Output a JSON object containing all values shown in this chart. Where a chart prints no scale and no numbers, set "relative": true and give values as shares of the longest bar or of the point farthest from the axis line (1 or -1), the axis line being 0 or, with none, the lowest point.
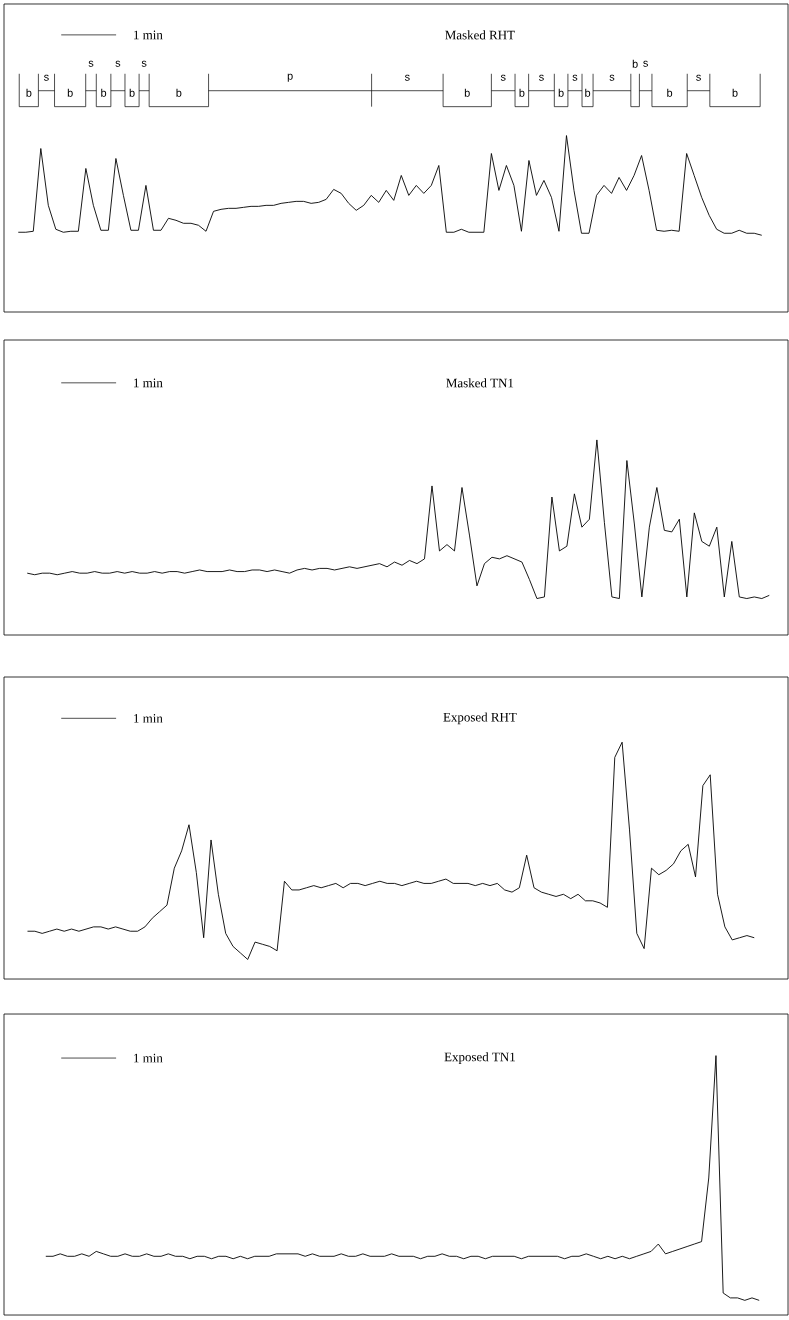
{
  "chart_data": [
    {
      "type": "line",
      "title": "Masked RHT",
      "relative": true,
      "color": "#000000",
      "annotations": [
        "1 min",
        "b",
        "s",
        "b",
        "s",
        "b",
        "s",
        "b",
        "s",
        "b",
        "p",
        "s",
        "b",
        "s",
        "b",
        "s",
        "b",
        "s",
        "b",
        "s",
        "b",
        "s",
        "b",
        "s",
        "b"
      ],
      "categories": [
        null,
        null,
        null,
        null,
        null,
        null,
        null,
        null,
        null,
        null,
        null,
        null,
        null,
        null,
        null,
        null,
        null,
        null,
        null,
        null,
        null,
        null,
        null,
        null,
        null,
        null,
        null,
        null,
        null,
        null,
        null,
        null,
        null,
        null,
        null,
        null,
        null,
        null,
        null,
        null,
        null,
        null,
        null,
        null,
        null,
        null,
        null,
        null,
        null,
        null,
        null,
        null,
        null,
        null,
        null,
        null,
        null,
        null,
        null,
        null,
        null,
        null,
        null,
        null,
        null,
        null,
        null,
        null,
        null,
        null,
        null,
        null,
        null,
        null,
        null,
        null,
        null,
        null,
        null,
        null,
        null,
        null,
        null,
        null,
        null,
        null,
        null,
        null,
        null,
        null,
        null,
        null,
        null,
        null,
        null,
        null,
        null,
        null,
        null,
        null
      ],
      "values": [
        0.03,
        0.03,
        0.04,
        0.87,
        0.3,
        0.06,
        0.03,
        0.04,
        0.04,
        0.67,
        0.3,
        0.05,
        0.05,
        0.77,
        0.4,
        0.05,
        0.05,
        0.5,
        0.05,
        0.05,
        0.17,
        0.15,
        0.12,
        0.12,
        0.1,
        0.04,
        0.24,
        0.26,
        0.27,
        0.27,
        0.28,
        0.29,
        0.29,
        0.3,
        0.3,
        0.32,
        0.33,
        0.34,
        0.34,
        0.32,
        0.33,
        0.36,
        0.46,
        0.42,
        0.32,
        0.25,
        0.3,
        0.4,
        0.33,
        0.45,
        0.35,
        0.6,
        0.4,
        0.5,
        0.42,
        0.5,
        0.7,
        0.03,
        0.03,
        0.06,
        0.03,
        0.03,
        0.03,
        0.82,
        0.45,
        0.7,
        0.5,
        0.04,
        0.75,
        0.4,
        0.55,
        0.38,
        0.04,
        1.0,
        0.45,
        0.02,
        0.02,
        0.4,
        0.5,
        0.42,
        0.58,
        0.45,
        0.6,
        0.8,
        0.45,
        0.05,
        0.04,
        0.05,
        0.04,
        0.82,
        0.6,
        0.38,
        0.2,
        0.06,
        0.02,
        0.02,
        0.05,
        0.02,
        0.02,
        0
      ]
    },
    {
      "type": "line",
      "title": "Masked TN1",
      "relative": true,
      "color": "#000000",
      "annotations": [
        "1 min"
      ],
      "categories": [
        null,
        null,
        null,
        null,
        null,
        null,
        null,
        null,
        null,
        null,
        null,
        null,
        null,
        null,
        null,
        null,
        null,
        null,
        null,
        null,
        null,
        null,
        null,
        null,
        null,
        null,
        null,
        null,
        null,
        null,
        null,
        null,
        null,
        null,
        null,
        null,
        null,
        null,
        null,
        null,
        null,
        null,
        null,
        null,
        null,
        null,
        null,
        null,
        null,
        null,
        null,
        null,
        null,
        null,
        null,
        null,
        null,
        null,
        null,
        null,
        null,
        null,
        null,
        null,
        null,
        null,
        null,
        null,
        null,
        null,
        null,
        null,
        null,
        null,
        null,
        null,
        null,
        null,
        null,
        null,
        null,
        null,
        null,
        null,
        null,
        null,
        null,
        null,
        null,
        null,
        null,
        null,
        null,
        null,
        null,
        null,
        null,
        null,
        null,
        null
      ],
      "values": [
        0.16,
        0.15,
        0.16,
        0.16,
        0.15,
        0.16,
        0.17,
        0.16,
        0.16,
        0.17,
        0.16,
        0.16,
        0.17,
        0.16,
        0.17,
        0.16,
        0.16,
        0.17,
        0.16,
        0.17,
        0.17,
        0.16,
        0.17,
        0.18,
        0.17,
        0.17,
        0.17,
        0.18,
        0.17,
        0.17,
        0.18,
        0.18,
        0.17,
        0.18,
        0.17,
        0.16,
        0.18,
        0.19,
        0.18,
        0.19,
        0.19,
        0.18,
        0.19,
        0.2,
        0.19,
        0.2,
        0.21,
        0.22,
        0.2,
        0.23,
        0.21,
        0.24,
        0.22,
        0.25,
        0.71,
        0.3,
        0.34,
        0.3,
        0.7,
        0.4,
        0.08,
        0.22,
        0.26,
        0.25,
        0.27,
        0.25,
        0.23,
        0.12,
        0,
        0.01,
        0.64,
        0.3,
        0.33,
        0.66,
        0.45,
        0.5,
        1.0,
        0.48,
        0.01,
        0,
        0.87,
        0.47,
        0.01,
        0.45,
        0.7,
        0.43,
        0.42,
        0.5,
        0.01,
        0.54,
        0.36,
        0.33,
        0.45,
        0.01,
        0.36,
        0.01,
        0,
        0.01,
        0,
        0.02
      ]
    },
    {
      "type": "line",
      "title": "Exposed RHT",
      "relative": true,
      "color": "#000000",
      "annotations": [
        "1 min"
      ],
      "categories": [
        null,
        null,
        null,
        null,
        null,
        null,
        null,
        null,
        null,
        null,
        null,
        null,
        null,
        null,
        null,
        null,
        null,
        null,
        null,
        null,
        null,
        null,
        null,
        null,
        null,
        null,
        null,
        null,
        null,
        null,
        null,
        null,
        null,
        null,
        null,
        null,
        null,
        null,
        null,
        null,
        null,
        null,
        null,
        null,
        null,
        null,
        null,
        null,
        null,
        null,
        null,
        null,
        null,
        null,
        null,
        null,
        null,
        null,
        null,
        null,
        null,
        null,
        null,
        null,
        null,
        null,
        null,
        null,
        null,
        null,
        null,
        null,
        null,
        null,
        null,
        null,
        null,
        null,
        null,
        null,
        null,
        null,
        null,
        null,
        null,
        null,
        null,
        null,
        null,
        null,
        null,
        null,
        null,
        null,
        null,
        null,
        null,
        null,
        null,
        null
      ],
      "values": [
        0.13,
        0.13,
        0.12,
        0.13,
        0.14,
        0.13,
        0.14,
        0.13,
        0.14,
        0.15,
        0.15,
        0.14,
        0.15,
        0.14,
        0.13,
        0.13,
        0.15,
        0.19,
        0.22,
        0.25,
        0.42,
        0.5,
        0.62,
        0.4,
        0.1,
        0.55,
        0.3,
        0.12,
        0.06,
        0.03,
        0,
        0.08,
        0.07,
        0.06,
        0.04,
        0.36,
        0.32,
        0.32,
        0.33,
        0.34,
        0.33,
        0.34,
        0.35,
        0.33,
        0.35,
        0.35,
        0.34,
        0.35,
        0.36,
        0.35,
        0.35,
        0.34,
        0.35,
        0.36,
        0.35,
        0.35,
        0.36,
        0.37,
        0.35,
        0.35,
        0.35,
        0.34,
        0.35,
        0.34,
        0.35,
        0.32,
        0.31,
        0.33,
        0.48,
        0.33,
        0.31,
        0.3,
        0.29,
        0.3,
        0.28,
        0.3,
        0.27,
        0.27,
        0.26,
        0.24,
        0.93,
        1.0,
        0.6,
        0.12,
        0.05,
        0.42,
        0.39,
        0.41,
        0.44,
        0.5,
        0.53,
        0.38,
        0.8,
        0.85,
        0.3,
        0.15,
        0.09,
        0.1,
        0.11,
        0.1
      ]
    },
    {
      "type": "line",
      "title": "Exposed TN1",
      "relative": true,
      "color": "#000000",
      "annotations": [
        "1 min"
      ],
      "categories": [
        null,
        null,
        null,
        null,
        null,
        null,
        null,
        null,
        null,
        null,
        null,
        null,
        null,
        null,
        null,
        null,
        null,
        null,
        null,
        null,
        null,
        null,
        null,
        null,
        null,
        null,
        null,
        null,
        null,
        null,
        null,
        null,
        null,
        null,
        null,
        null,
        null,
        null,
        null,
        null,
        null,
        null,
        null,
        null,
        null,
        null,
        null,
        null,
        null,
        null,
        null,
        null,
        null,
        null,
        null,
        null,
        null,
        null,
        null,
        null,
        null,
        null,
        null,
        null,
        null,
        null,
        null,
        null,
        null,
        null,
        null,
        null,
        null,
        null,
        null,
        null,
        null,
        null,
        null,
        null,
        null,
        null,
        null,
        null,
        null,
        null,
        null,
        null,
        null,
        null,
        null,
        null,
        null,
        null,
        null,
        null,
        null,
        null,
        null,
        null
      ],
      "values": [
        0.18,
        0.18,
        0.19,
        0.18,
        0.18,
        0.19,
        0.18,
        0.2,
        0.19,
        0.18,
        0.18,
        0.19,
        0.18,
        0.18,
        0.19,
        0.18,
        0.18,
        0.19,
        0.18,
        0.18,
        0.17,
        0.18,
        0.18,
        0.17,
        0.18,
        0.18,
        0.17,
        0.18,
        0.17,
        0.18,
        0.18,
        0.18,
        0.19,
        0.19,
        0.19,
        0.19,
        0.18,
        0.19,
        0.18,
        0.18,
        0.18,
        0.19,
        0.18,
        0.18,
        0.19,
        0.18,
        0.18,
        0.18,
        0.19,
        0.18,
        0.18,
        0.18,
        0.17,
        0.18,
        0.18,
        0.19,
        0.18,
        0.18,
        0.17,
        0.18,
        0.18,
        0.17,
        0.18,
        0.18,
        0.18,
        0.18,
        0.17,
        0.18,
        0.18,
        0.18,
        0.18,
        0.18,
        0.17,
        0.18,
        0.18,
        0.19,
        0.18,
        0.17,
        0.18,
        0.17,
        0.18,
        0.17,
        0.18,
        0.19,
        0.2,
        0.23,
        0.19,
        0.2,
        0.21,
        0.22,
        0.23,
        0.24,
        0.5,
        1.0,
        0.03,
        0.01,
        0.01,
        0,
        0.01,
        0
      ]
    }
  ]
}
